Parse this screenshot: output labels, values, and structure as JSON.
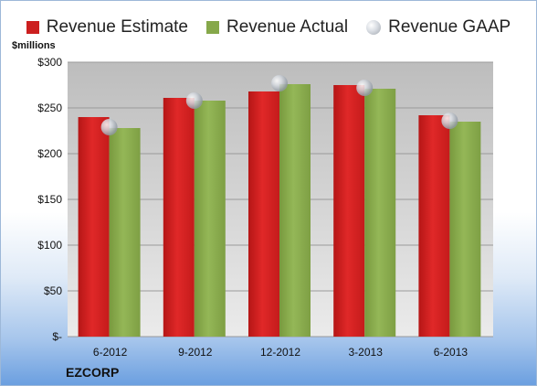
{
  "chart_data": {
    "type": "bar",
    "ylabel": "$millions",
    "ylim": [
      0,
      300
    ],
    "yticks": [
      0,
      50,
      100,
      150,
      200,
      250,
      300
    ],
    "ytick_labels": [
      "$-",
      "$50",
      "$100",
      "$150",
      "$200",
      "$250",
      "$300"
    ],
    "categories": [
      "6-2012",
      "9-2012",
      "12-2012",
      "3-2013",
      "6-2013"
    ],
    "series": [
      {
        "name": "Revenue Estimate",
        "type": "bar",
        "color": "#cc1f1f",
        "values": [
          240,
          261,
          268,
          275,
          242
        ]
      },
      {
        "name": "Revenue Actual",
        "type": "bar",
        "color": "#86a84a",
        "values": [
          228,
          258,
          276,
          271,
          235
        ]
      },
      {
        "name": "Revenue GAAP",
        "type": "marker",
        "color": "#c8ccd2",
        "values": [
          229,
          258,
          277,
          272,
          236
        ]
      }
    ],
    "grid": true,
    "legend_position": "top",
    "company": "EZCORP"
  }
}
